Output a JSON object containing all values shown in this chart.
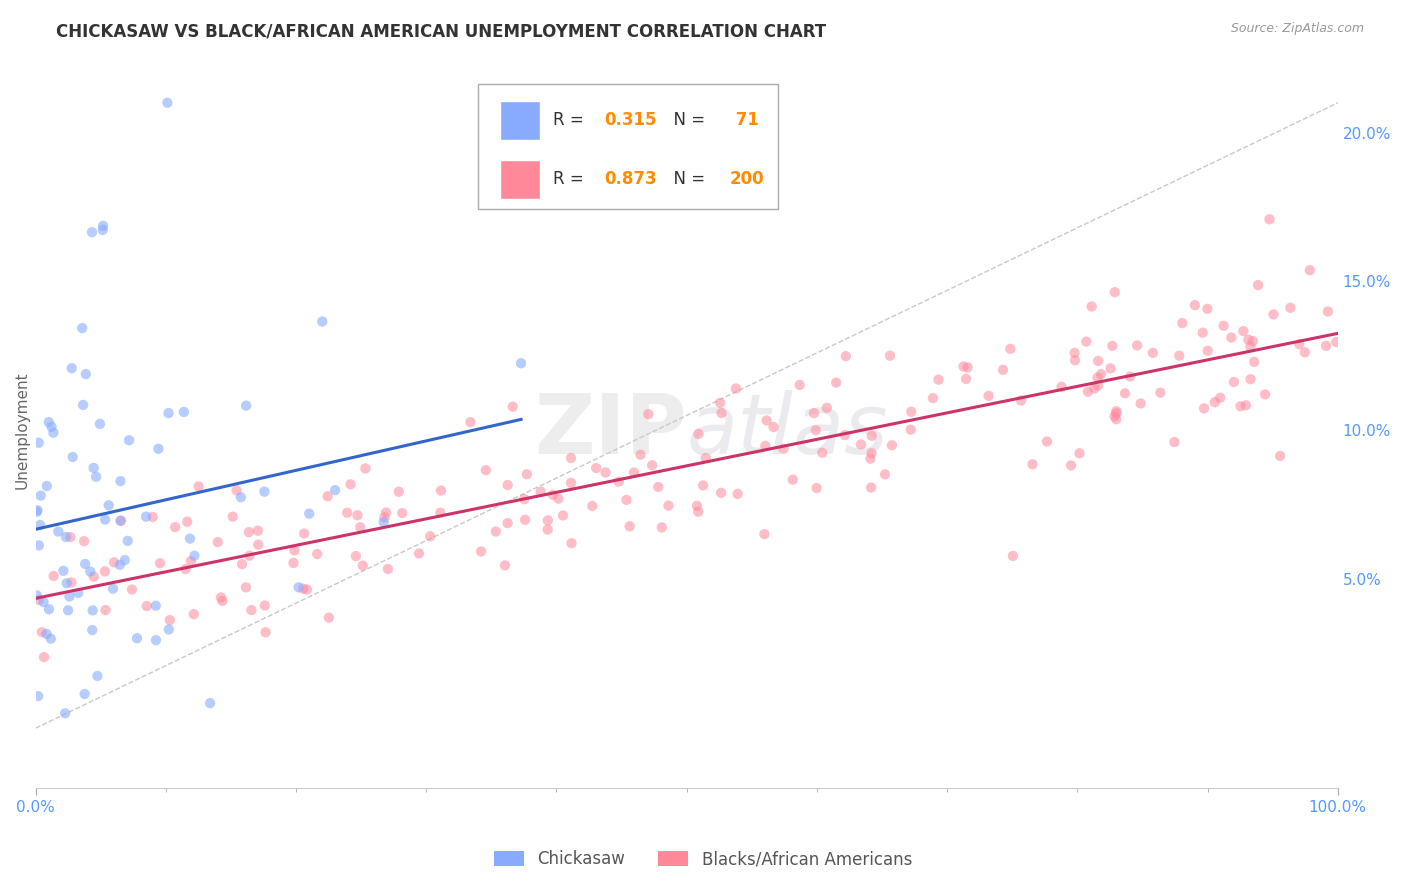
{
  "title": "CHICKASAW VS BLACK/AFRICAN AMERICAN UNEMPLOYMENT CORRELATION CHART",
  "source": "Source: ZipAtlas.com",
  "ylabel": "Unemployment",
  "legend_label_1": "Chickasaw",
  "legend_label_2": "Blacks/African Americans",
  "color_1": "#88aaff",
  "color_2": "#ff8899",
  "line_color_1": "#3366cc",
  "line_color_2": "#cc3366",
  "R1": 0.315,
  "N1": 71,
  "R2": 0.873,
  "N2": 200,
  "xlim": [
    0,
    1.0
  ],
  "ylim": [
    -0.02,
    0.22
  ],
  "y_ticks": [
    0.05,
    0.1,
    0.15,
    0.2
  ],
  "y_tick_labels": [
    "5.0%",
    "10.0%",
    "15.0%",
    "20.0%"
  ],
  "title_color": "#333333",
  "title_fontsize": 12,
  "axis_tick_color": "#5599ff",
  "legend_value_color": "#ff8c00",
  "watermark_color": "#cccccc",
  "background_color": "#ffffff",
  "grid_color": "#dddddd"
}
